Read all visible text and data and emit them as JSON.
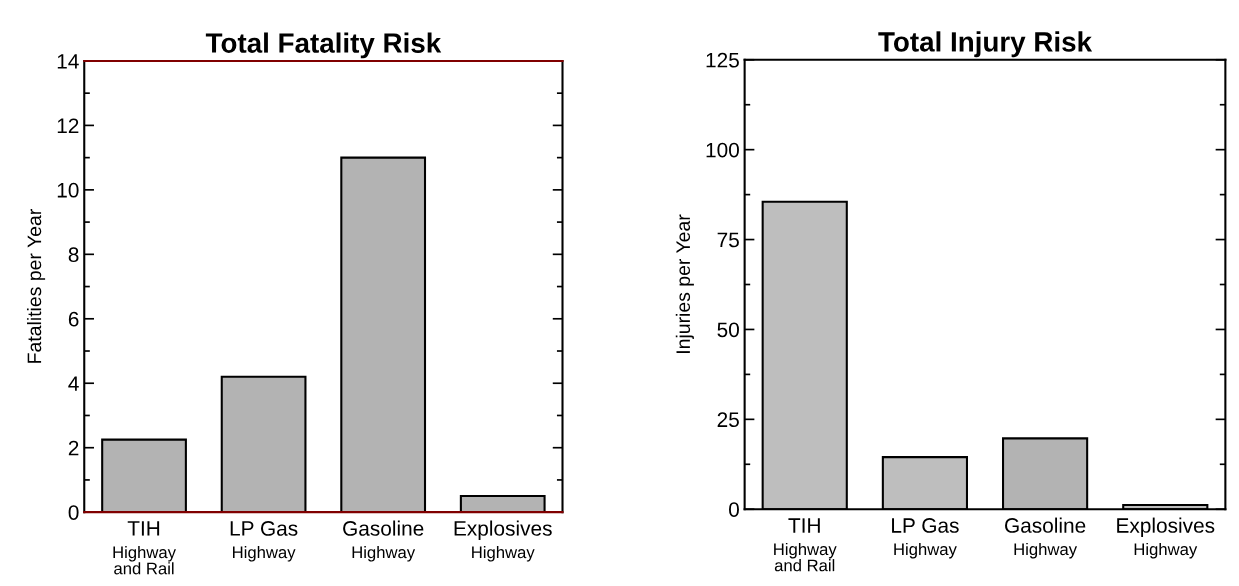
{
  "chart_data": [
    {
      "type": "bar",
      "title": "Total Fatality Risk",
      "ylabel": "Fatalities per Year",
      "categories": [
        "TIH\nHighway\nand Rail",
        "LP Gas\nHighway",
        "Gasoline\nHighway",
        "Explosives\nHighway"
      ],
      "values": [
        2.25,
        4.2,
        11.0,
        0.5
      ],
      "colors": [
        "#b3b3b3",
        "#b3b3b3",
        "#b3b3b3",
        "#b3b3b3"
      ],
      "ylim": [
        0,
        14
      ],
      "yticks": [
        0,
        2,
        4,
        6,
        8,
        10,
        12,
        14
      ],
      "grid": false
    },
    {
      "type": "bar",
      "title": "Total Injury Risk",
      "ylabel": "Injuries per Year",
      "categories": [
        "TIH\nHighway\nand Rail",
        "LP Gas\nHighway",
        "Gasoline\nHighway",
        "Explosives\nHighway"
      ],
      "values": [
        85.5,
        14.5,
        19.7,
        1.2
      ],
      "colors": [
        "#bebebe",
        "#bebebe",
        "#b3b3b3",
        "#bebebe"
      ],
      "ylim": [
        0,
        125
      ],
      "yticks": [
        0,
        25,
        50,
        75,
        100,
        125
      ],
      "grid": false
    }
  ]
}
